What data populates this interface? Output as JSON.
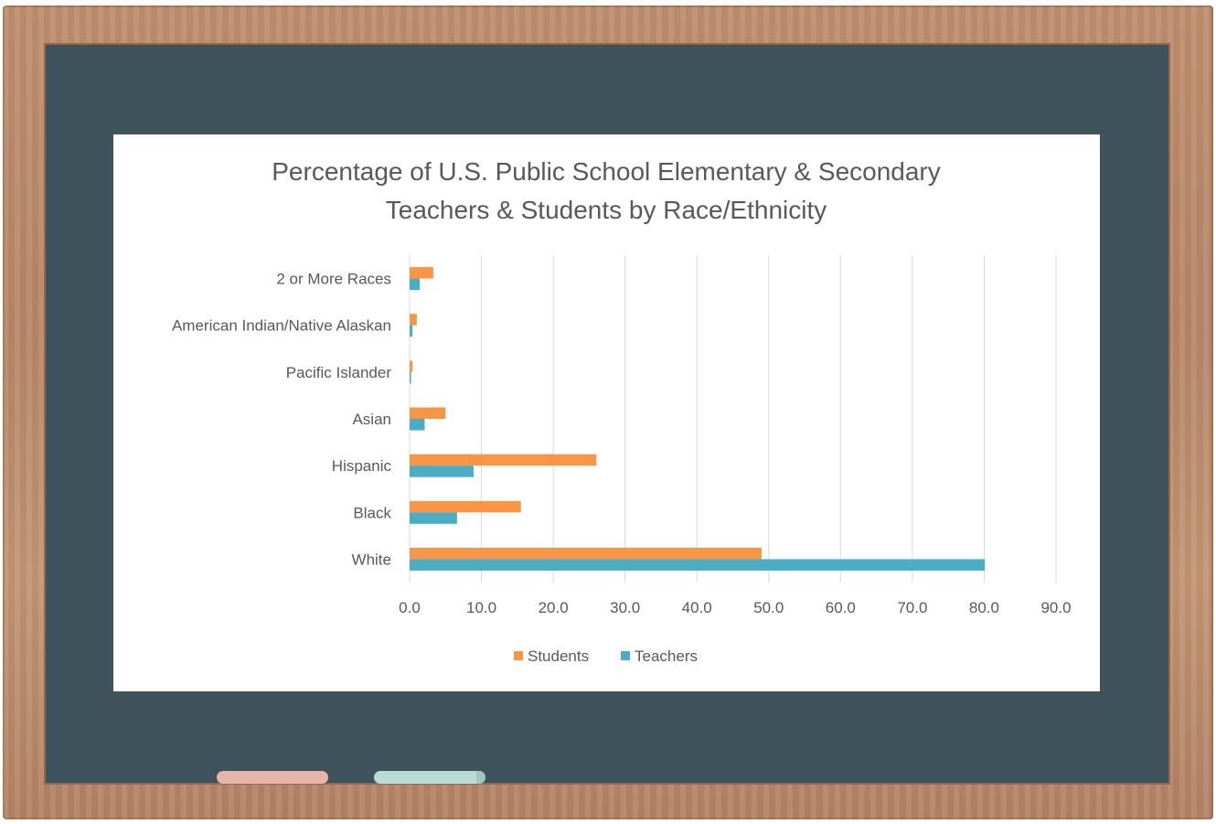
{
  "chart_data": {
    "type": "bar",
    "orientation": "horizontal",
    "title_lines": [
      "Percentage of U.S. Public School Elementary & Secondary",
      "Teachers & Students by Race/Ethnicity"
    ],
    "categories": [
      "2 or More Races",
      "American Indian/Native Alaskan",
      "Pacific Islander",
      "Asian",
      "Hispanic",
      "Black",
      "White"
    ],
    "series": [
      {
        "name": "Students",
        "color": "#f79646",
        "values": [
          3.3,
          1.0,
          0.4,
          5.0,
          26.0,
          15.5,
          49.0
        ]
      },
      {
        "name": "Teachers",
        "color": "#4bacc6",
        "values": [
          1.4,
          0.4,
          0.2,
          2.1,
          8.9,
          6.6,
          80.1
        ]
      }
    ],
    "xlim": [
      0,
      90
    ],
    "xticks": [
      "0.0",
      "10.0",
      "20.0",
      "30.0",
      "40.0",
      "50.0",
      "60.0",
      "70.0",
      "80.0",
      "90.0"
    ],
    "xlabel": "",
    "ylabel": "",
    "grid": true,
    "legend_position": "bottom"
  }
}
